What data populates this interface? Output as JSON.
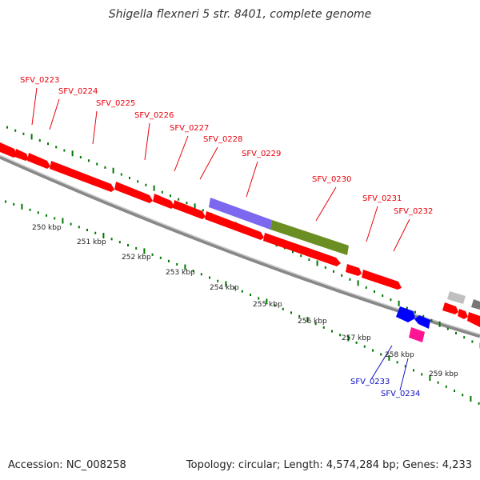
{
  "title": "Shigella flexneri 5 str. 8401, complete genome",
  "footer": {
    "accession": "Accession: NC_008258",
    "summary": "Topology: circular; Length: 4,574,284 bp; Genes: 4,233"
  },
  "colors": {
    "forward_gene": "#ff0000",
    "reverse_gene": "#0000ff",
    "pink_gene": "#ff1493",
    "purple_block": "#7b68ee",
    "olive_block": "#6b8e23",
    "grey_block": "#b0b0b0",
    "tick_green": "#007700",
    "backbone": "#888888"
  },
  "scale_labels": [
    "250 kbp",
    "251 kbp",
    "252 kbp",
    "253 kbp",
    "254 kbp",
    "255 kbp",
    "256 kbp",
    "257 kbp",
    "258 kbp",
    "259 kbp"
  ],
  "forward_gene_labels": [
    "SFV_0223",
    "SFV_0224",
    "SFV_0225",
    "SFV_0226",
    "SFV_0227",
    "SFV_0228",
    "SFV_0229",
    "SFV_0230",
    "SFV_0231",
    "SFV_0232"
  ],
  "reverse_gene_labels": [
    "SFV_0233",
    "SFV_0234"
  ]
}
